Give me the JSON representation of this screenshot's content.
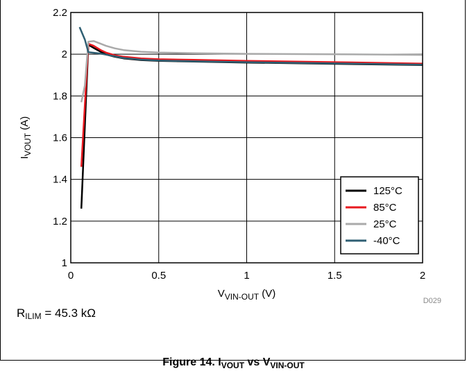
{
  "chart_data": {
    "type": "line",
    "xlabel": {
      "main": "V",
      "sub": "VIN-OUT",
      "unit": " (V)"
    },
    "ylabel": {
      "main": "I",
      "sub": "VOUT",
      "unit": " (A)"
    },
    "xlim": [
      0,
      2
    ],
    "ylim": [
      1,
      2.2
    ],
    "x_ticks": [
      "0",
      "0.5",
      "1",
      "1.5",
      "2"
    ],
    "y_ticks": [
      "1",
      "1.2",
      "1.4",
      "1.6",
      "1.8",
      "2",
      "2.2"
    ],
    "grid": true,
    "legend_position": "bottom-right",
    "series": [
      {
        "name": "125°C",
        "color": "#000000",
        "x": [
          0.06,
          0.1,
          0.13,
          0.17,
          0.2,
          0.25,
          0.3,
          0.4,
          0.5,
          0.7,
          1.0,
          1.5,
          2.0
        ],
        "y": [
          1.26,
          2.045,
          2.03,
          2.012,
          1.999,
          1.988,
          1.98,
          1.972,
          1.968,
          1.965,
          1.96,
          1.954,
          1.948
        ]
      },
      {
        "name": "85°C",
        "color": "#e8191f",
        "x": [
          0.06,
          0.1,
          0.13,
          0.17,
          0.2,
          0.25,
          0.3,
          0.4,
          0.5,
          0.7,
          1.0,
          1.5,
          2.0
        ],
        "y": [
          1.46,
          2.05,
          2.04,
          2.02,
          2.008,
          1.995,
          1.988,
          1.98,
          1.976,
          1.973,
          1.968,
          1.962,
          1.955
        ]
      },
      {
        "name": "25°C",
        "color": "#aaaaaa",
        "x": [
          0.06,
          0.08,
          0.1,
          0.13,
          0.17,
          0.2,
          0.25,
          0.3,
          0.4,
          0.5,
          0.7,
          1.0,
          1.5,
          2.0
        ],
        "y": [
          1.77,
          1.85,
          2.06,
          2.063,
          2.05,
          2.04,
          2.028,
          2.02,
          2.012,
          2.008,
          2.005,
          2.002,
          2.0,
          1.997
        ]
      },
      {
        "name": "-40°C",
        "color": "#2f5f73",
        "x": [
          0.05,
          0.08,
          0.1,
          0.13,
          0.17,
          0.2,
          0.25,
          0.3,
          0.4,
          0.5,
          0.7,
          1.0,
          1.5,
          2.0
        ],
        "y": [
          2.13,
          2.07,
          2.01,
          2.007,
          2.003,
          1.998,
          1.99,
          1.982,
          1.974,
          1.97,
          1.966,
          1.962,
          1.956,
          1.95
        ]
      }
    ],
    "code": "D029"
  },
  "note": {
    "main": "R",
    "sub": "ILIM",
    "rest": " = 45.3 kΩ"
  },
  "caption": {
    "main": "Figure 14. I",
    "sub1": "VOUT",
    "mid": " vs V",
    "sub2": "VIN-OUT"
  }
}
